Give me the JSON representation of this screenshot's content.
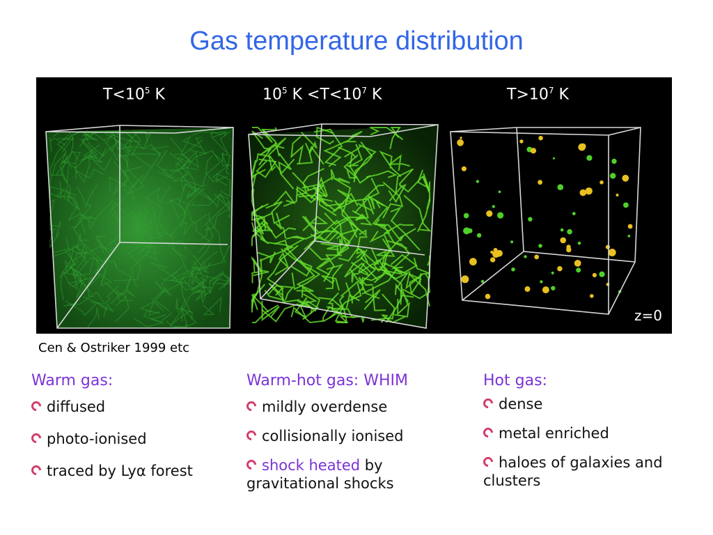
{
  "slide": {
    "title": "Gas temperature distribution"
  },
  "figure": {
    "panels": [
      {
        "label_pre": "T<10",
        "label_sup": "5",
        "label_post": " K"
      },
      {
        "label_pre": "10",
        "label_sup": "5",
        "label_mid": " K <T<10",
        "label_sup2": "7",
        "label_post": " K"
      },
      {
        "label_pre": "T>10",
        "label_sup": "7",
        "label_post": " K"
      }
    ],
    "redshift": "z=0",
    "colors": {
      "background": "#000000",
      "warm": "#2f9e2f",
      "whim": "#66e02a",
      "hot": "#e8c020"
    },
    "credit": "Cen & Ostriker 1999 etc"
  },
  "columns": [
    {
      "heading": "Warm gas:",
      "items": [
        "diffused",
        "photo-ionised",
        "traced by Lyα forest"
      ]
    },
    {
      "heading": "Warm-hot gas: WHIM",
      "items": [
        "mildly overdense",
        "collisionally ionised"
      ],
      "last_item": {
        "highlight": "shock heated",
        "rest": " by gravitational shocks"
      }
    },
    {
      "heading": "Hot gas:",
      "items": [
        "dense",
        "metal enriched",
        "haloes of galaxies and clusters"
      ]
    }
  ]
}
